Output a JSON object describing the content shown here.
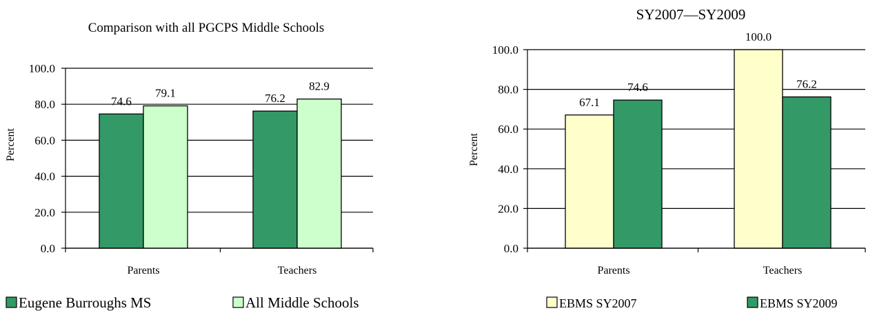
{
  "chart_data": [
    {
      "type": "bar",
      "title": "Comparison with all PGCPS Middle Schools",
      "ylabel": "Percent",
      "categories": [
        "Parents",
        "Teachers"
      ],
      "ylim": [
        0,
        100
      ],
      "yticks": [
        "0.0",
        "20.0",
        "40.0",
        "60.0",
        "80.0",
        "100.0"
      ],
      "grid": true,
      "legend_position": "bottom",
      "series": [
        {
          "name": "Eugene Burroughs MS",
          "values": [
            74.6,
            76.2
          ],
          "labels": [
            "74.6",
            "76.2"
          ],
          "color": "#339966"
        },
        {
          "name": "All Middle Schools",
          "values": [
            79.1,
            82.9
          ],
          "labels": [
            "79.1",
            "82.9"
          ],
          "color": "#ccffcc"
        }
      ]
    },
    {
      "type": "bar",
      "title": "SY2007—SY2009",
      "ylabel": "Percent",
      "categories": [
        "Parents",
        "Teachers"
      ],
      "ylim": [
        0,
        100
      ],
      "yticks": [
        "0.0",
        "20.0",
        "40.0",
        "60.0",
        "80.0",
        "100.0"
      ],
      "grid": true,
      "legend_position": "bottom",
      "series": [
        {
          "name": "EBMS SY2007",
          "values": [
            67.1,
            100.0
          ],
          "labels": [
            "67.1",
            "100.0"
          ],
          "color": "#ffffcc"
        },
        {
          "name": "EBMS SY2009",
          "values": [
            74.6,
            76.2
          ],
          "labels": [
            "74.6",
            "76.2"
          ],
          "color": "#339966"
        }
      ]
    }
  ]
}
